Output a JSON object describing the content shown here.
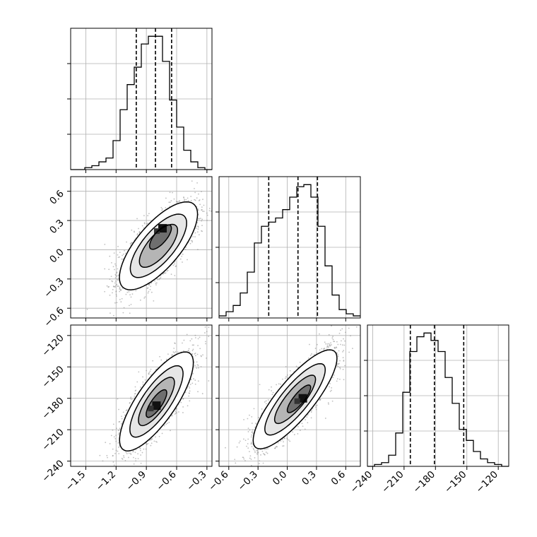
{
  "chart_data": {
    "type": "corner",
    "parameters": [
      {
        "range": [
          -1.65,
          -0.25
        ],
        "ticks": [
          -1.5,
          -1.2,
          -0.9,
          -0.6,
          -0.3
        ],
        "tick_labels": [
          "−1.5",
          "−1.2",
          "−0.9",
          "−0.6",
          "−0.3"
        ],
        "quantiles": [
          -1.0,
          -0.81,
          -0.65
        ]
      },
      {
        "range": [
          -0.7,
          0.75
        ],
        "ticks": [
          -0.6,
          -0.3,
          0.0,
          0.3,
          0.6
        ],
        "tick_labels": [
          "−0.6",
          "−0.3",
          "0.0",
          "0.3",
          "0.6"
        ],
        "quantiles": [
          -0.19,
          0.11,
          0.31
        ]
      },
      {
        "range": [
          -245,
          -110
        ],
        "ticks": [
          -240,
          -210,
          -180,
          -150,
          -120
        ],
        "tick_labels": [
          "−240",
          "−210",
          "−180",
          "−150",
          "−120"
        ],
        "quantiles": [
          -204,
          -181,
          -153
        ]
      }
    ],
    "histograms": [
      {
        "param": 0,
        "edges_start": -1.65,
        "bin_width": 0.07,
        "counts": [
          0,
          0,
          1,
          2,
          4,
          6,
          15,
          31,
          44,
          53,
          65,
          69,
          69,
          56,
          36,
          22,
          10,
          4,
          1,
          0
        ]
      },
      {
        "param": 1,
        "edges_start": -0.7,
        "bin_width": 0.0725,
        "counts": [
          1,
          3,
          6,
          12,
          22,
          36,
          44,
          46,
          48,
          52,
          58,
          63,
          64,
          58,
          44,
          25,
          11,
          4,
          2,
          1
        ]
      },
      {
        "param": 2,
        "edges_start": -245,
        "bin_width": 6.75,
        "counts": [
          0,
          1,
          2,
          6,
          18,
          40,
          62,
          70,
          72,
          68,
          62,
          48,
          34,
          20,
          14,
          8,
          4,
          2,
          1,
          0
        ]
      }
    ],
    "scatter_2d": [
      {
        "x_param": 0,
        "y_param": 1,
        "mean": [
          -0.78,
          0.04
        ],
        "sd": [
          0.18,
          0.21
        ],
        "corr": 0.72,
        "peak": [
          -0.74,
          0.22
        ]
      },
      {
        "x_param": 0,
        "y_param": 2,
        "mean": [
          -0.8,
          -183
        ],
        "sd": [
          0.17,
          22
        ],
        "corr": 0.78,
        "peak": [
          -0.8,
          -187
        ]
      },
      {
        "x_param": 1,
        "y_param": 2,
        "mean": [
          0.08,
          -181
        ],
        "sd": [
          0.2,
          22
        ],
        "corr": 0.83,
        "peak": [
          0.16,
          -180
        ]
      }
    ],
    "grid": true
  }
}
